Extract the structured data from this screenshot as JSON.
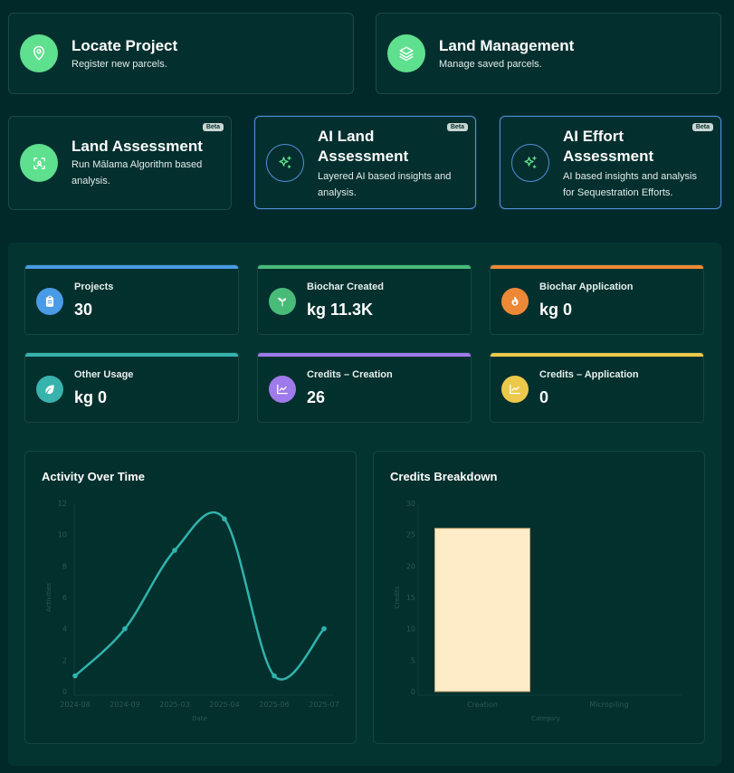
{
  "actions": [
    {
      "title": "Locate Project",
      "subtitle": "Register new parcels.",
      "icon": "map-pin-icon"
    },
    {
      "title": "Land Management",
      "subtitle": "Manage saved parcels.",
      "icon": "layers-icon"
    },
    {
      "title": "Land Assessment",
      "subtitle": "Run Mālama Algorithm based analysis.",
      "icon": "scan-icon",
      "badge": "Beta"
    },
    {
      "title": "AI Land Assessment",
      "subtitle": "Layered AI based insights and analysis.",
      "icon": "sparkles-icon",
      "badge": "Beta"
    },
    {
      "title": "AI Effort Assessment",
      "subtitle": "AI based insights and analysis for Sequestration Efforts.",
      "icon": "sparkles-icon",
      "badge": "Beta"
    }
  ],
  "stats": [
    {
      "label": "Projects",
      "value": "30",
      "color": "#4a9be6",
      "icon": "clipboard-icon"
    },
    {
      "label": "Biochar Created",
      "value": "kg 11.3K",
      "color": "#48bb78",
      "icon": "sprout-icon"
    },
    {
      "label": "Biochar Application",
      "value": "kg 0",
      "color": "#ed8936",
      "icon": "flame-icon"
    },
    {
      "label": "Other Usage",
      "value": "kg 0",
      "color": "#38b2ac",
      "icon": "leaf-icon"
    },
    {
      "label": "Credits – Creation",
      "value": "26",
      "color": "#9f7aea",
      "icon": "trend-chart-icon"
    },
    {
      "label": "Credits – Application",
      "value": "0",
      "color": "#ecc94b",
      "icon": "trend-chart-icon"
    }
  ],
  "chart_data": [
    {
      "type": "line",
      "title": "Activity Over Time",
      "xlabel": "Date",
      "ylabel": "Activities",
      "categories": [
        "2024-08",
        "2024-09",
        "2025-03",
        "2025-04",
        "2025-06",
        "2025-07"
      ],
      "values": [
        1,
        4,
        9,
        11,
        1,
        4
      ],
      "ylim": [
        0,
        12
      ],
      "yticks": [
        0,
        2,
        4,
        6,
        8,
        10,
        12
      ],
      "color": "#2fb3ac",
      "grid": false
    },
    {
      "type": "bar",
      "title": "Credits Breakdown",
      "xlabel": "Category",
      "ylabel": "Credits",
      "categories": [
        "Creation",
        "Micropiling"
      ],
      "values": [
        26,
        0
      ],
      "ylim": [
        0,
        30
      ],
      "yticks": [
        0,
        5,
        10,
        15,
        20,
        25,
        30
      ],
      "color": "#feebc8",
      "grid": false
    }
  ]
}
